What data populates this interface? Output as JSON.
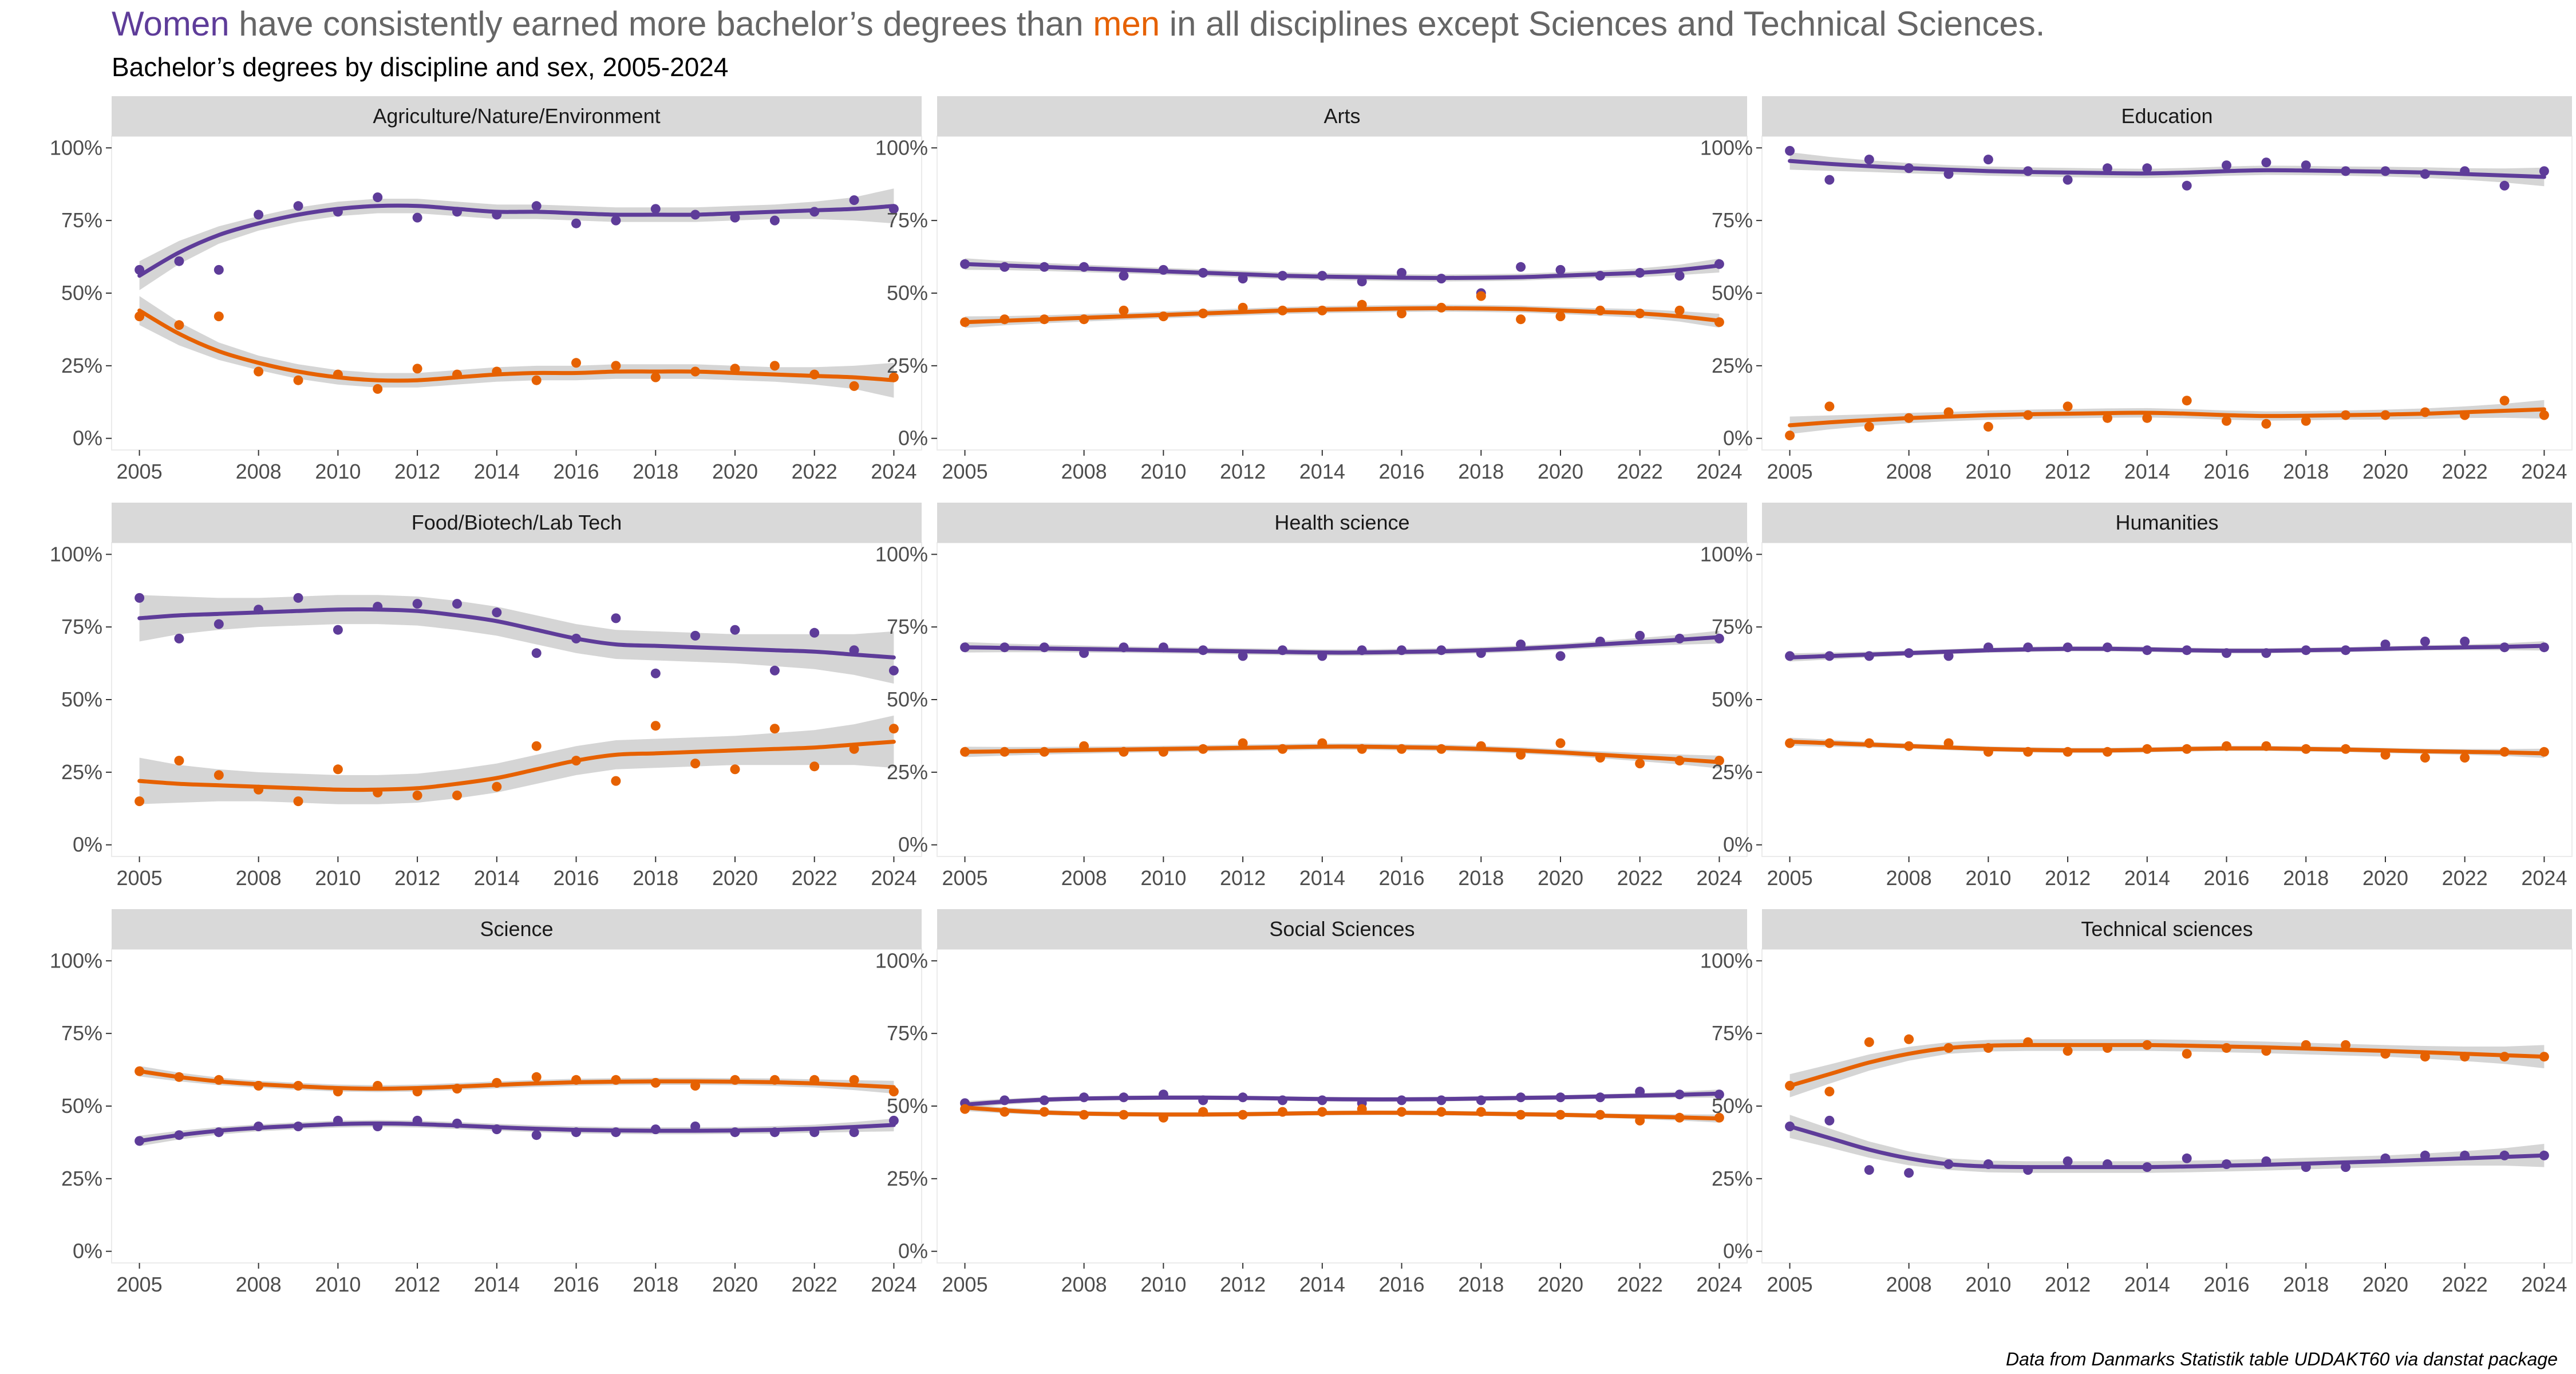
{
  "title": {
    "women": "Women",
    "part1": " have consistently earned more bachelor’s degrees than ",
    "men": "men",
    "part2": " in all disciplines except Sciences and Technical Sciences."
  },
  "subtitle": "Bachelor’s degrees by discipline and sex, 2005-2024",
  "caption": "Data from Danmarks Statistik table UDDAKT60 via danstat package",
  "colors": {
    "women": "#5E3C99",
    "men": "#E66101",
    "band": "#bfbfbf",
    "strip": "#d9d9d9",
    "tick": "#333333",
    "grid": "#ebebeb",
    "title_gray": "#666666"
  },
  "chart_data": {
    "type": "scatter",
    "smoother": "loess with confidence band",
    "x_ticks": [
      2005,
      2008,
      2010,
      2012,
      2014,
      2016,
      2018,
      2020,
      2022,
      2024
    ],
    "y_ticks": [
      0,
      25,
      50,
      75,
      100
    ],
    "y_tick_labels": [
      "0%",
      "25%",
      "50%",
      "75%",
      "100%"
    ],
    "xlim": [
      2004.3,
      2024.7
    ],
    "ylim": [
      -4,
      104
    ],
    "years": [
      2005,
      2006,
      2007,
      2008,
      2009,
      2010,
      2011,
      2012,
      2013,
      2014,
      2015,
      2016,
      2017,
      2018,
      2019,
      2020,
      2021,
      2022,
      2023,
      2024
    ],
    "panels": [
      {
        "name": "Agriculture/Nature/Environment",
        "women": [
          58,
          61,
          58,
          77,
          80,
          78,
          83,
          76,
          78,
          77,
          80,
          74,
          75,
          79,
          77,
          76,
          75,
          78,
          82,
          79
        ],
        "men": [
          42,
          39,
          42,
          23,
          20,
          22,
          17,
          24,
          22,
          23,
          20,
          26,
          25,
          21,
          23,
          24,
          25,
          22,
          18,
          21
        ],
        "women_fit": [
          56,
          64,
          70,
          74,
          77,
          79,
          80,
          80,
          79,
          78,
          78,
          77.5,
          77,
          77,
          77,
          77.5,
          78,
          78.5,
          79,
          80
        ],
        "men_fit": [
          44,
          36,
          30,
          26,
          23,
          21,
          20,
          20,
          21,
          22,
          22.5,
          22.5,
          23,
          23,
          23,
          22.5,
          22,
          21.5,
          21,
          20
        ],
        "band": [
          5,
          4,
          3,
          2.5,
          2.5,
          2.5,
          2.5,
          2.5,
          2.5,
          2.5,
          2.5,
          2.5,
          2.5,
          2.5,
          2.5,
          2.5,
          2.5,
          3,
          4,
          6
        ]
      },
      {
        "name": "Arts",
        "women": [
          60,
          59,
          59,
          59,
          56,
          58,
          57,
          55,
          56,
          56,
          54,
          57,
          55,
          50,
          59,
          58,
          56,
          57,
          56,
          60
        ],
        "men": [
          40,
          41,
          41,
          41,
          44,
          42,
          43,
          45,
          44,
          44,
          46,
          43,
          45,
          49,
          41,
          42,
          44,
          43,
          44,
          40
        ],
        "women_fit": [
          60,
          59.5,
          59,
          58.5,
          58,
          57.5,
          57,
          56.5,
          56,
          55.7,
          55.5,
          55.3,
          55.2,
          55.3,
          55.5,
          56,
          56.5,
          57,
          58,
          59.5
        ],
        "men_fit": [
          40,
          40.5,
          41,
          41.5,
          42,
          42.5,
          43,
          43.5,
          44,
          44.3,
          44.5,
          44.7,
          44.8,
          44.7,
          44.5,
          44,
          43.5,
          43,
          42,
          40.5
        ],
        "band": [
          2,
          1.6,
          1.4,
          1.3,
          1.2,
          1.2,
          1.2,
          1.2,
          1.2,
          1.2,
          1.2,
          1.2,
          1.2,
          1.2,
          1.2,
          1.2,
          1.3,
          1.5,
          1.8,
          2.4
        ]
      },
      {
        "name": "Education",
        "women": [
          99,
          89,
          96,
          93,
          91,
          96,
          92,
          89,
          93,
          93,
          87,
          94,
          95,
          94,
          92,
          92,
          91,
          92,
          87,
          92
        ],
        "men": [
          1,
          11,
          4,
          7,
          9,
          4,
          8,
          11,
          7,
          7,
          13,
          6,
          5,
          6,
          8,
          8,
          9,
          8,
          13,
          8
        ],
        "women_fit": [
          95.5,
          94.5,
          93.7,
          93,
          92.5,
          92,
          91.7,
          91.5,
          91.3,
          91.2,
          91.5,
          92,
          92.3,
          92.2,
          92,
          91.8,
          91.5,
          91,
          90.5,
          90
        ],
        "men_fit": [
          4.5,
          5.5,
          6.3,
          7,
          7.5,
          8,
          8.3,
          8.5,
          8.7,
          8.8,
          8.5,
          8,
          7.7,
          7.8,
          8,
          8.2,
          8.5,
          9,
          9.5,
          10
        ],
        "band": [
          3,
          2.4,
          2,
          1.8,
          1.6,
          1.6,
          1.6,
          1.6,
          1.6,
          1.6,
          1.6,
          1.6,
          1.6,
          1.6,
          1.6,
          1.7,
          1.8,
          2,
          2.4,
          3.2
        ]
      },
      {
        "name": "Food/Biotech/Lab Tech",
        "women": [
          85,
          71,
          76,
          81,
          85,
          74,
          82,
          83,
          83,
          80,
          66,
          71,
          78,
          59,
          72,
          74,
          60,
          73,
          67,
          60
        ],
        "men": [
          15,
          29,
          24,
          19,
          15,
          26,
          18,
          17,
          17,
          20,
          34,
          29,
          22,
          41,
          28,
          26,
          40,
          27,
          33,
          40
        ],
        "women_fit": [
          78,
          79,
          79.5,
          80,
          80.5,
          81,
          81,
          80.5,
          79,
          77,
          74,
          71,
          69,
          68.5,
          68,
          67.5,
          67,
          66.5,
          65.5,
          64.5
        ],
        "men_fit": [
          22,
          21,
          20.5,
          20,
          19.5,
          19,
          19,
          19.5,
          21,
          23,
          26,
          29,
          31,
          31.5,
          32,
          32.5,
          33,
          33.5,
          34.5,
          35.5
        ],
        "band": [
          8,
          6.5,
          5.5,
          5,
          5,
          5,
          5,
          5,
          5,
          5,
          5,
          5,
          5,
          5,
          5,
          5,
          5.5,
          6,
          7,
          9
        ]
      },
      {
        "name": "Health science",
        "women": [
          68,
          68,
          68,
          66,
          68,
          68,
          67,
          65,
          67,
          65,
          67,
          67,
          67,
          66,
          69,
          65,
          70,
          72,
          71,
          71
        ],
        "men": [
          32,
          32,
          32,
          34,
          32,
          32,
          33,
          35,
          33,
          35,
          33,
          33,
          33,
          34,
          31,
          35,
          30,
          28,
          29,
          29
        ],
        "women_fit": [
          68,
          67.8,
          67.6,
          67.4,
          67.2,
          67,
          66.8,
          66.6,
          66.4,
          66.2,
          66.2,
          66.4,
          66.6,
          67,
          67.5,
          68.2,
          69,
          69.8,
          70.6,
          71.5
        ],
        "men_fit": [
          32,
          32.2,
          32.4,
          32.6,
          32.8,
          33,
          33.2,
          33.4,
          33.6,
          33.8,
          33.8,
          33.6,
          33.4,
          33,
          32.5,
          31.8,
          31,
          30.2,
          29.4,
          28.5
        ],
        "band": [
          1.8,
          1.5,
          1.3,
          1.2,
          1.1,
          1.1,
          1.1,
          1.1,
          1.1,
          1.1,
          1.1,
          1.1,
          1.1,
          1.1,
          1.1,
          1.1,
          1.2,
          1.4,
          1.7,
          2.2
        ]
      },
      {
        "name": "Humanities",
        "women": [
          65,
          65,
          65,
          66,
          65,
          68,
          68,
          68,
          68,
          67,
          67,
          66,
          66,
          67,
          67,
          69,
          70,
          70,
          68,
          68
        ],
        "men": [
          35,
          35,
          35,
          34,
          35,
          32,
          32,
          32,
          32,
          33,
          33,
          34,
          34,
          33,
          33,
          31,
          30,
          30,
          32,
          32
        ],
        "women_fit": [
          64.5,
          65,
          65.5,
          66,
          66.5,
          67,
          67.3,
          67.5,
          67.5,
          67.3,
          67,
          66.8,
          66.8,
          67,
          67.2,
          67.5,
          67.8,
          68,
          68.2,
          68.5
        ],
        "men_fit": [
          35.5,
          35,
          34.5,
          34,
          33.5,
          33,
          32.7,
          32.5,
          32.5,
          32.7,
          33,
          33.2,
          33.2,
          33,
          32.8,
          32.5,
          32.2,
          32,
          31.8,
          31.5
        ],
        "band": [
          1.4,
          1.2,
          1,
          0.9,
          0.9,
          0.9,
          0.9,
          0.9,
          0.9,
          0.9,
          0.9,
          0.9,
          0.9,
          0.9,
          0.9,
          0.9,
          0.9,
          1,
          1.2,
          1.6
        ]
      },
      {
        "name": "Science",
        "women": [
          38,
          40,
          41,
          43,
          43,
          45,
          43,
          45,
          44,
          42,
          40,
          41,
          41,
          42,
          43,
          41,
          41,
          41,
          41,
          45
        ],
        "men": [
          62,
          60,
          59,
          57,
          57,
          55,
          57,
          55,
          56,
          58,
          60,
          59,
          59,
          58,
          57,
          59,
          59,
          59,
          59,
          55
        ],
        "women_fit": [
          38,
          40,
          41.5,
          42.5,
          43.2,
          43.8,
          44,
          43.8,
          43.3,
          42.7,
          42.2,
          41.8,
          41.6,
          41.5,
          41.5,
          41.6,
          41.8,
          42.2,
          42.8,
          43.5
        ],
        "men_fit": [
          62,
          60,
          58.5,
          57.5,
          56.8,
          56.2,
          56,
          56.2,
          56.7,
          57.3,
          57.8,
          58.2,
          58.4,
          58.5,
          58.5,
          58.4,
          58.2,
          57.8,
          57.2,
          56.5
        ],
        "band": [
          1.8,
          1.5,
          1.3,
          1.2,
          1.2,
          1.2,
          1.2,
          1.2,
          1.2,
          1.2,
          1.2,
          1.2,
          1.2,
          1.2,
          1.2,
          1.2,
          1.3,
          1.4,
          1.7,
          2.2
        ]
      },
      {
        "name": "Social Sciences",
        "women": [
          51,
          52,
          52,
          53,
          53,
          54,
          52,
          53,
          52,
          52,
          51,
          52,
          52,
          52,
          53,
          53,
          53,
          55,
          54,
          54
        ],
        "men": [
          49,
          48,
          48,
          47,
          47,
          46,
          48,
          47,
          48,
          48,
          49,
          48,
          48,
          48,
          47,
          47,
          47,
          45,
          46,
          46
        ],
        "women_fit": [
          50.5,
          51.5,
          52.2,
          52.6,
          52.8,
          52.9,
          52.9,
          52.8,
          52.6,
          52.4,
          52.3,
          52.3,
          52.4,
          52.6,
          52.8,
          53,
          53.3,
          53.6,
          53.9,
          54.3
        ],
        "men_fit": [
          49.5,
          48.5,
          47.8,
          47.4,
          47.2,
          47.1,
          47.1,
          47.2,
          47.4,
          47.6,
          47.7,
          47.7,
          47.6,
          47.4,
          47.2,
          47,
          46.7,
          46.4,
          46.1,
          45.7
        ],
        "band": [
          1.2,
          1,
          0.9,
          0.8,
          0.8,
          0.8,
          0.8,
          0.8,
          0.8,
          0.8,
          0.8,
          0.8,
          0.8,
          0.8,
          0.8,
          0.8,
          0.8,
          0.9,
          1.1,
          1.4
        ]
      },
      {
        "name": "Technical sciences",
        "women": [
          43,
          45,
          28,
          27,
          30,
          30,
          28,
          31,
          30,
          29,
          32,
          30,
          31,
          29,
          29,
          32,
          33,
          33,
          33,
          33
        ],
        "men": [
          57,
          55,
          72,
          73,
          70,
          70,
          72,
          69,
          70,
          71,
          68,
          70,
          69,
          71,
          71,
          68,
          67,
          67,
          67,
          67
        ],
        "women_fit": [
          43,
          39,
          35,
          32,
          30,
          29.2,
          29,
          29,
          29,
          29,
          29.2,
          29.5,
          29.8,
          30.2,
          30.6,
          31,
          31.5,
          32,
          32.5,
          33
        ],
        "men_fit": [
          57,
          61,
          65,
          68,
          70,
          70.8,
          71,
          71,
          71,
          71,
          70.8,
          70.5,
          70.2,
          69.8,
          69.4,
          69,
          68.5,
          68,
          67.5,
          67
        ],
        "band": [
          4,
          3.3,
          2.8,
          2.4,
          2,
          2,
          2,
          2,
          2,
          2,
          2,
          2,
          2,
          2,
          2,
          2,
          2.2,
          2.5,
          3,
          4
        ]
      }
    ]
  }
}
